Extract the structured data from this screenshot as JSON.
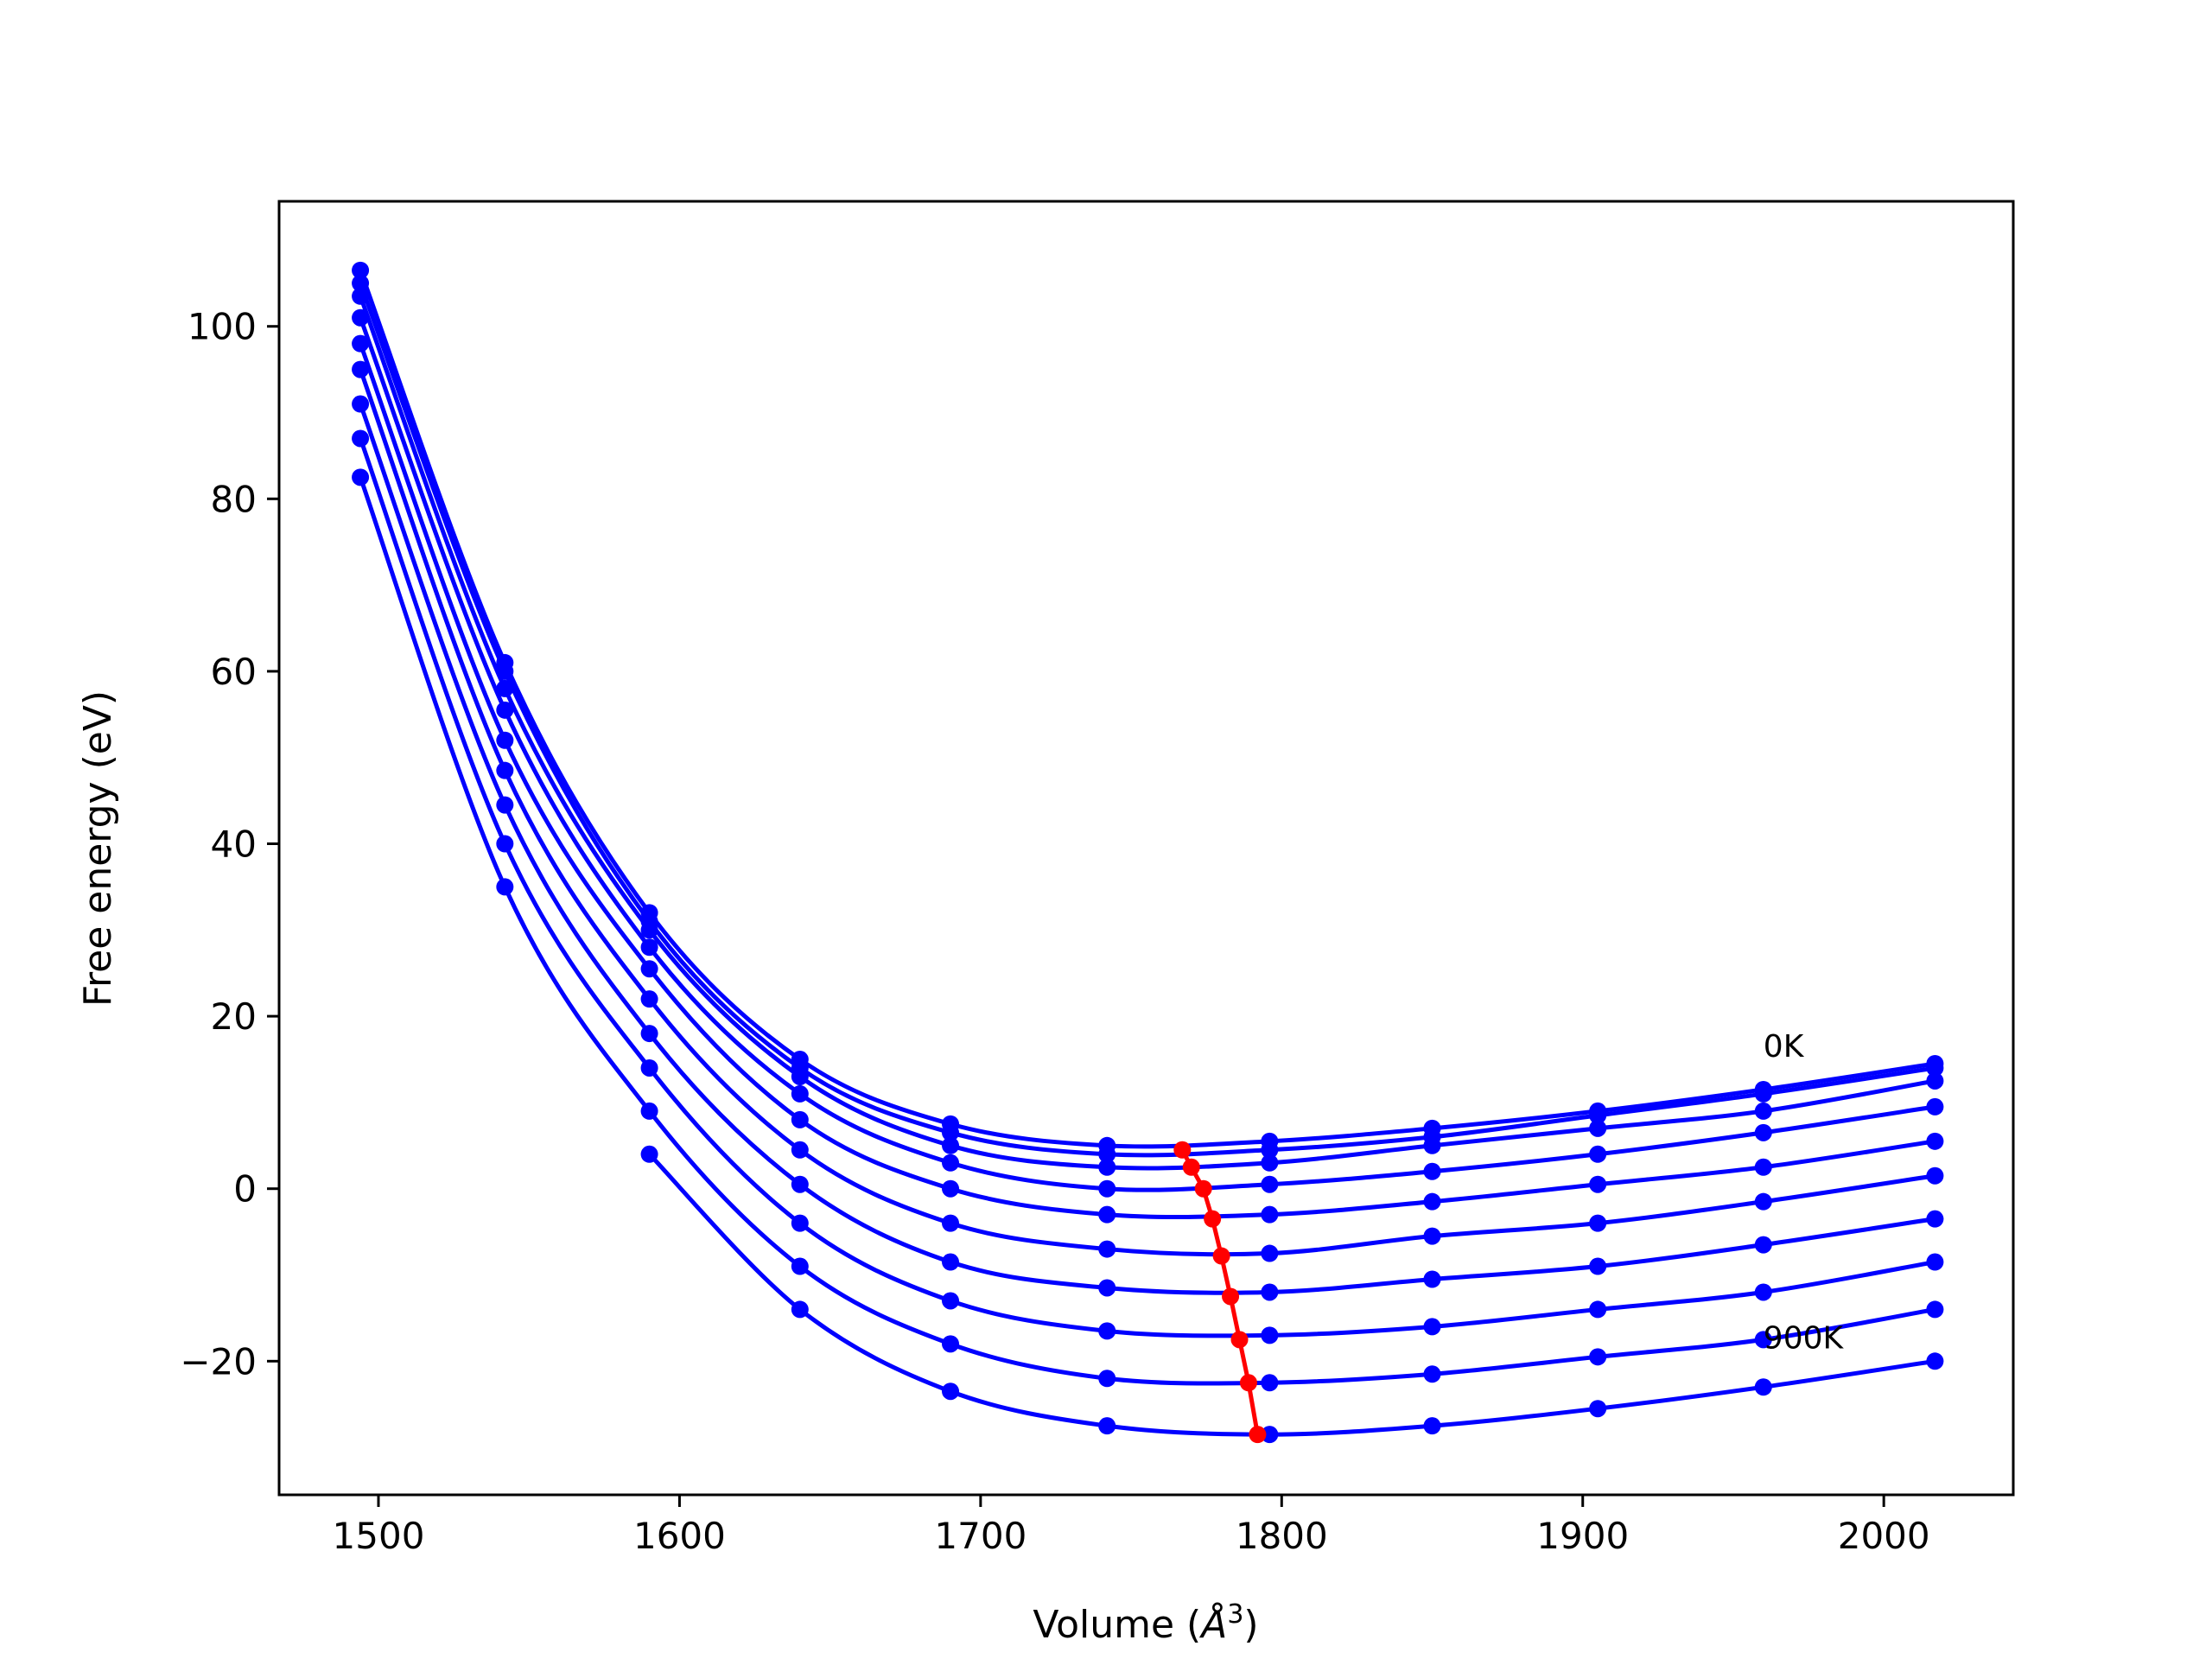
{
  "chart_data": {
    "type": "line",
    "title": "",
    "xlabel": "Volume (",
    "xlabel_unit": "Å",
    "xlabel_sup": "3",
    "xlabel_close": ")",
    "ylabel": "Free energy (eV)",
    "xlim": [
      1467,
      2043
    ],
    "ylim": [
      -35.5,
      114.5
    ],
    "xticks": [
      1500,
      1600,
      1700,
      1800,
      1900,
      2000
    ],
    "yticks": [
      -20,
      0,
      20,
      40,
      60,
      80,
      100
    ],
    "xtick_labels": [
      "1500",
      "1600",
      "1700",
      "1800",
      "1900",
      "2000"
    ],
    "ytick_labels": [
      "−20",
      "0",
      "20",
      "40",
      "60",
      "80",
      "100"
    ],
    "grid": false,
    "legend": "none",
    "annotations": [
      {
        "text": "0K",
        "x": 1960,
        "y": 15.3
      },
      {
        "text": "900K",
        "x": 1960,
        "y": -18.5
      }
    ],
    "series_color": "#0000ff",
    "min_path_color": "#ff0000",
    "volumes": [
      1494,
      1542,
      1590,
      1640,
      1690,
      1742,
      1796,
      1850,
      1905,
      1960,
      2017
    ],
    "series": [
      {
        "values": [
          106.5,
          61.0,
          32.0,
          15.0,
          7.5,
          5.0,
          5.5,
          7.0,
          9.0,
          11.5,
          14.5
        ]
      },
      {
        "values": [
          105.0,
          60.0,
          31.0,
          14.0,
          6.5,
          4.0,
          4.5,
          6.0,
          8.5,
          11.0,
          14.0
        ]
      },
      {
        "values": [
          103.5,
          58.0,
          30.0,
          13.0,
          5.0,
          2.5,
          3.0,
          5.0,
          7.0,
          9.0,
          12.5
        ]
      },
      {
        "values": [
          101.0,
          55.5,
          28.0,
          11.0,
          3.0,
          0.0,
          0.5,
          2.0,
          4.0,
          6.5,
          9.5
        ]
      },
      {
        "values": [
          98.0,
          52.0,
          25.5,
          8.0,
          0.0,
          -3.0,
          -3.0,
          -1.5,
          0.5,
          2.5,
          5.5
        ]
      },
      {
        "values": [
          95.0,
          48.5,
          22.0,
          4.5,
          -4.0,
          -7.0,
          -7.5,
          -5.5,
          -4.0,
          -1.5,
          1.5
        ]
      },
      {
        "values": [
          91.0,
          44.5,
          18.0,
          0.5,
          -8.5,
          -11.5,
          -12.0,
          -10.5,
          -9.0,
          -6.5,
          -3.5
        ]
      },
      {
        "values": [
          87.0,
          40.0,
          14.0,
          -4.0,
          -13.0,
          -16.5,
          -17.0,
          -16.0,
          -14.0,
          -12.0,
          -8.5
        ]
      },
      {
        "values": [
          82.5,
          35.0,
          9.0,
          -9.0,
          -18.0,
          -22.0,
          -22.5,
          -21.5,
          -19.5,
          -17.5,
          -14.0
        ]
      },
      {
        "values": [
          null,
          null,
          4.0,
          -14.0,
          -23.5,
          -27.5,
          -28.5,
          -27.5,
          -25.5,
          -23.0,
          -20.0
        ]
      }
    ],
    "min_path": {
      "x": [
        1767,
        1770,
        1774,
        1777,
        1780,
        1783,
        1786,
        1789,
        1792
      ],
      "y": [
        4.5,
        2.5,
        0.0,
        -3.5,
        -7.8,
        -12.5,
        -17.5,
        -22.5,
        -28.5
      ]
    }
  }
}
